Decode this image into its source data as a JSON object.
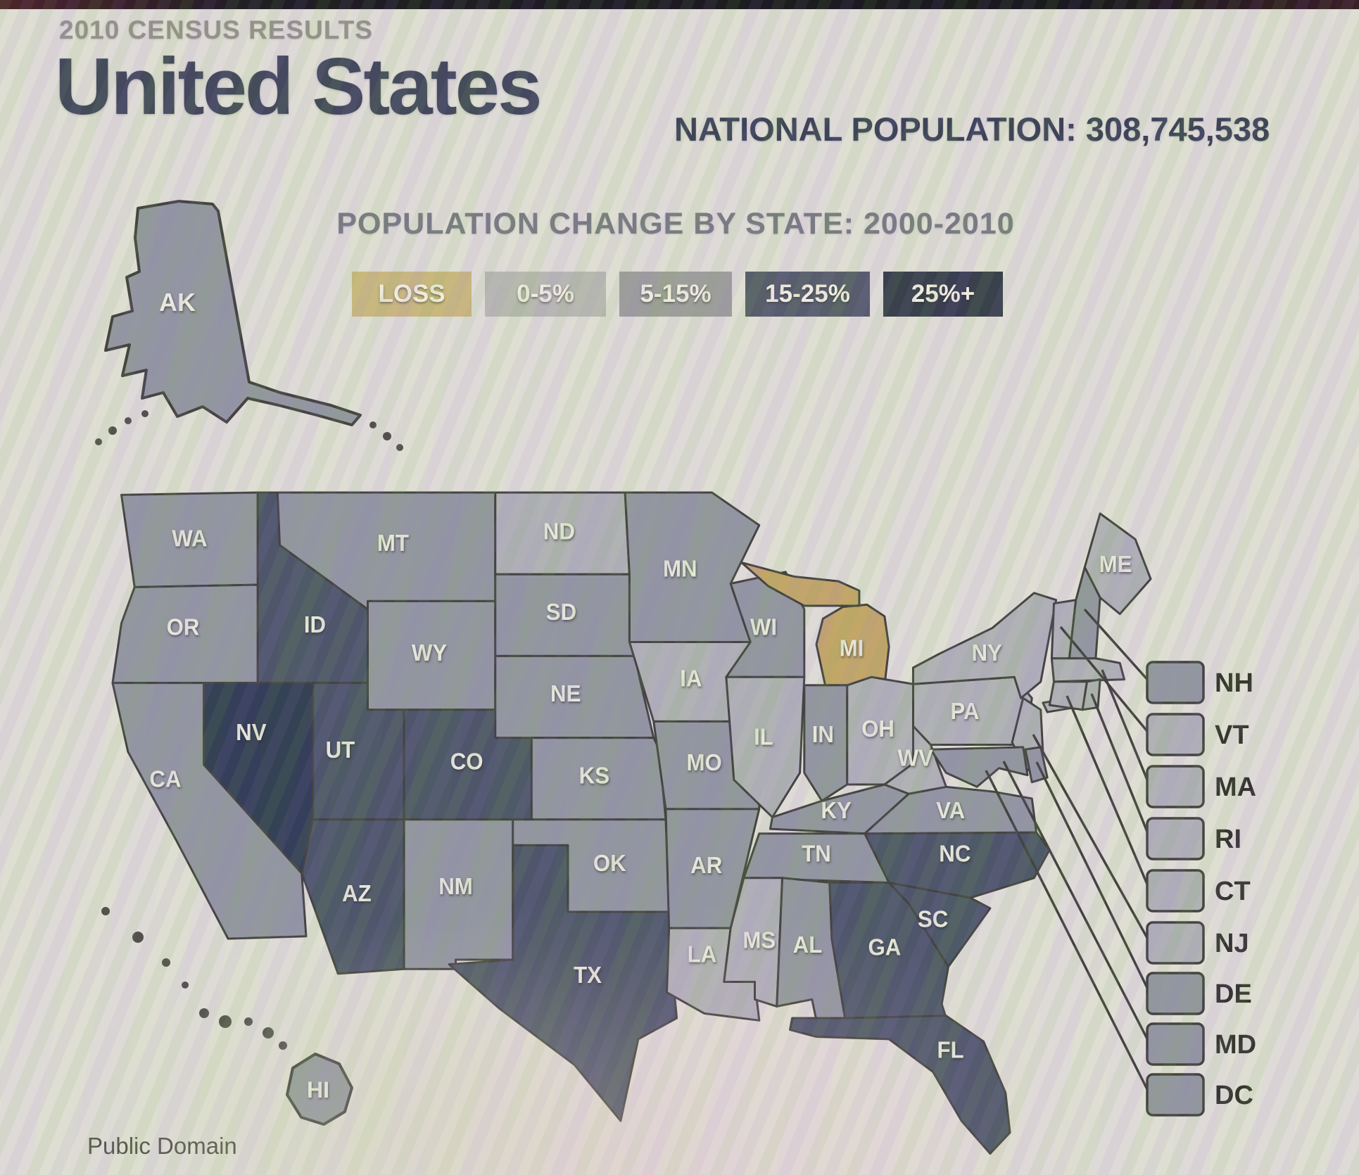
{
  "header": {
    "kicker": "2010 CENSUS RESULTS",
    "title": "United States",
    "population_label": "NATIONAL POPULATION: 308,745,538"
  },
  "map_title": "POPULATION CHANGE BY STATE: 2000-2010",
  "legend": [
    {
      "key": "loss",
      "label": "LOSS"
    },
    {
      "key": "p0_5",
      "label": "0-5%"
    },
    {
      "key": "p5_15",
      "label": "5-15%"
    },
    {
      "key": "p15_25",
      "label": "15-25%"
    },
    {
      "key": "p25",
      "label": "25%+"
    }
  ],
  "colors": {
    "legend": {
      "loss": "#c9b67c",
      "p0_5": "#b6b7b1",
      "p5_15": "#9a9c98",
      "p15_25": "#505667",
      "p25": "#2f3646"
    },
    "map": {
      "loss": "#c2a364",
      "p0_5": "#aeafb6",
      "p5_15": "#8f939f",
      "p15_25": "#465064",
      "p25": "#2a3650"
    },
    "border": "#3b3b38",
    "state_label": "#e8e9db",
    "background": "#e0ded7"
  },
  "callouts": [
    "NH",
    "VT",
    "MA",
    "RI",
    "CT",
    "NJ",
    "DE",
    "MD",
    "DC"
  ],
  "footer": {
    "credit": "Public Domain"
  },
  "chart_data": {
    "type": "choropleth",
    "title": "POPULATION CHANGE BY STATE: 2000-2010",
    "region": "United States",
    "national_population": 308745538,
    "categories": [
      "LOSS",
      "0-5%",
      "5-15%",
      "15-25%",
      "25%+"
    ],
    "states": {
      "WA": "p5_15",
      "OR": "p5_15",
      "CA": "p5_15",
      "NV": "p25",
      "ID": "p15_25",
      "MT": "p5_15",
      "WY": "p5_15",
      "UT": "p15_25",
      "CO": "p15_25",
      "AZ": "p15_25",
      "NM": "p5_15",
      "ND": "p0_5",
      "SD": "p5_15",
      "NE": "p5_15",
      "KS": "p5_15",
      "OK": "p5_15",
      "TX": "p15_25",
      "MN": "p5_15",
      "IA": "p0_5",
      "MO": "p5_15",
      "AR": "p5_15",
      "LA": "p0_5",
      "WI": "p5_15",
      "IL": "p0_5",
      "MI": "loss",
      "IN": "p5_15",
      "OH": "p0_5",
      "KY": "p5_15",
      "TN": "p5_15",
      "MS": "p0_5",
      "AL": "p5_15",
      "GA": "p15_25",
      "FL": "p15_25",
      "SC": "p15_25",
      "NC": "p15_25",
      "VA": "p5_15",
      "WV": "p0_5",
      "PA": "p0_5",
      "NY": "p0_5",
      "ME": "p0_5",
      "VT": "p0_5",
      "NH": "p5_15",
      "MA": "p0_5",
      "RI": "p0_5",
      "CT": "p0_5",
      "NJ": "p0_5",
      "DE": "p5_15",
      "MD": "p5_15",
      "DC": "p5_15",
      "AK": "p5_15",
      "HI": "p5_15"
    }
  }
}
